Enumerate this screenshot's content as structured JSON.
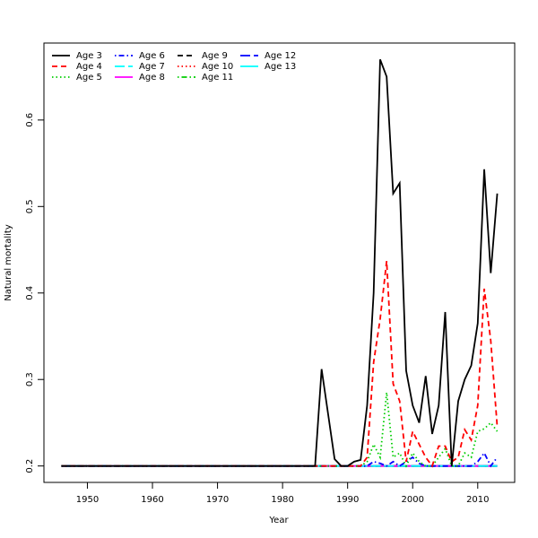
{
  "chart_data": {
    "type": "line",
    "title": null,
    "xlabel": "Year",
    "ylabel": "Natural mortality",
    "x": [
      1946,
      1947,
      1948,
      1949,
      1950,
      1951,
      1952,
      1953,
      1954,
      1955,
      1956,
      1957,
      1958,
      1959,
      1960,
      1961,
      1962,
      1963,
      1964,
      1965,
      1966,
      1967,
      1968,
      1969,
      1970,
      1971,
      1972,
      1973,
      1974,
      1975,
      1976,
      1977,
      1978,
      1979,
      1980,
      1981,
      1982,
      1983,
      1984,
      1985,
      1986,
      1987,
      1988,
      1989,
      1990,
      1991,
      1992,
      1993,
      1994,
      1995,
      1996,
      1997,
      1998,
      1999,
      2000,
      2001,
      2002,
      2003,
      2004,
      2005,
      2006,
      2007,
      2008,
      2009,
      2010,
      2011,
      2012,
      2013
    ],
    "xlim": [
      1943.32,
      2015.68
    ],
    "xticks": [
      1950,
      1960,
      1970,
      1980,
      1990,
      2000,
      2010
    ],
    "ylim": [
      0.181,
      0.689
    ],
    "yticks": [
      0.2,
      0.3,
      0.4,
      0.5,
      0.6
    ],
    "legend": "top-left",
    "series": [
      {
        "name": "Age 3",
        "color": "#000000",
        "dash": "solid",
        "values": [
          0.2,
          0.2,
          0.2,
          0.2,
          0.2,
          0.2,
          0.2,
          0.2,
          0.2,
          0.2,
          0.2,
          0.2,
          0.2,
          0.2,
          0.2,
          0.2,
          0.2,
          0.2,
          0.2,
          0.2,
          0.2,
          0.2,
          0.2,
          0.2,
          0.2,
          0.2,
          0.2,
          0.2,
          0.2,
          0.2,
          0.2,
          0.2,
          0.2,
          0.2,
          0.2,
          0.2,
          0.2,
          0.2,
          0.2,
          0.2,
          0.312,
          0.26,
          0.208,
          0.2,
          0.2,
          0.205,
          0.207,
          0.27,
          0.4,
          0.67,
          0.65,
          0.515,
          0.527,
          0.31,
          0.27,
          0.25,
          0.304,
          0.237,
          0.27,
          0.378,
          0.2,
          0.275,
          0.3,
          0.316,
          0.365,
          0.543,
          0.423,
          0.515
        ]
      },
      {
        "name": "Age 4",
        "color": "#ff0000",
        "dash": "dashed",
        "values": [
          0.2,
          0.2,
          0.2,
          0.2,
          0.2,
          0.2,
          0.2,
          0.2,
          0.2,
          0.2,
          0.2,
          0.2,
          0.2,
          0.2,
          0.2,
          0.2,
          0.2,
          0.2,
          0.2,
          0.2,
          0.2,
          0.2,
          0.2,
          0.2,
          0.2,
          0.2,
          0.2,
          0.2,
          0.2,
          0.2,
          0.2,
          0.2,
          0.2,
          0.2,
          0.2,
          0.2,
          0.2,
          0.2,
          0.2,
          0.2,
          0.2,
          0.2,
          0.2,
          0.2,
          0.2,
          0.2,
          0.2,
          0.21,
          0.32,
          0.37,
          0.437,
          0.295,
          0.275,
          0.205,
          0.24,
          0.225,
          0.21,
          0.2,
          0.223,
          0.223,
          0.205,
          0.21,
          0.242,
          0.23,
          0.27,
          0.405,
          0.345,
          0.245
        ]
      },
      {
        "name": "Age 5",
        "color": "#00cd00",
        "dash": "dotted",
        "values": [
          0.2,
          0.2,
          0.2,
          0.2,
          0.2,
          0.2,
          0.2,
          0.2,
          0.2,
          0.2,
          0.2,
          0.2,
          0.2,
          0.2,
          0.2,
          0.2,
          0.2,
          0.2,
          0.2,
          0.2,
          0.2,
          0.2,
          0.2,
          0.2,
          0.2,
          0.2,
          0.2,
          0.2,
          0.2,
          0.2,
          0.2,
          0.2,
          0.2,
          0.2,
          0.2,
          0.2,
          0.2,
          0.2,
          0.2,
          0.2,
          0.2,
          0.2,
          0.2,
          0.2,
          0.2,
          0.2,
          0.2,
          0.205,
          0.225,
          0.21,
          0.285,
          0.21,
          0.215,
          0.2,
          0.215,
          0.205,
          0.2,
          0.2,
          0.21,
          0.22,
          0.2,
          0.2,
          0.215,
          0.21,
          0.24,
          0.243,
          0.25,
          0.24
        ]
      },
      {
        "name": "Age 6",
        "color": "#0000ff",
        "dash": "dotdash",
        "values": [
          0.2,
          0.2,
          0.2,
          0.2,
          0.2,
          0.2,
          0.2,
          0.2,
          0.2,
          0.2,
          0.2,
          0.2,
          0.2,
          0.2,
          0.2,
          0.2,
          0.2,
          0.2,
          0.2,
          0.2,
          0.2,
          0.2,
          0.2,
          0.2,
          0.2,
          0.2,
          0.2,
          0.2,
          0.2,
          0.2,
          0.2,
          0.2,
          0.2,
          0.2,
          0.2,
          0.2,
          0.2,
          0.2,
          0.2,
          0.2,
          0.2,
          0.2,
          0.2,
          0.2,
          0.2,
          0.2,
          0.2,
          0.2,
          0.205,
          0.203,
          0.2,
          0.205,
          0.2,
          0.205,
          0.21,
          0.203,
          0.2,
          0.2,
          0.2,
          0.2,
          0.2,
          0.2,
          0.2,
          0.2,
          0.205,
          0.215,
          0.2,
          0.21
        ]
      },
      {
        "name": "Age 7",
        "color": "#00ffff",
        "dash": "longdash",
        "values": [
          0.2,
          0.2,
          0.2,
          0.2,
          0.2,
          0.2,
          0.2,
          0.2,
          0.2,
          0.2,
          0.2,
          0.2,
          0.2,
          0.2,
          0.2,
          0.2,
          0.2,
          0.2,
          0.2,
          0.2,
          0.2,
          0.2,
          0.2,
          0.2,
          0.2,
          0.2,
          0.2,
          0.2,
          0.2,
          0.2,
          0.2,
          0.2,
          0.2,
          0.2,
          0.2,
          0.2,
          0.2,
          0.2,
          0.2,
          0.2,
          0.2,
          0.2,
          0.2,
          0.2,
          0.2,
          0.2,
          0.2,
          0.2,
          0.2,
          0.2,
          0.2,
          0.2,
          0.2,
          0.2,
          0.2,
          0.2,
          0.2,
          0.2,
          0.2,
          0.2,
          0.2,
          0.2,
          0.2,
          0.2,
          0.2,
          0.2,
          0.2,
          0.2
        ]
      },
      {
        "name": "Age 8",
        "color": "#ff00ff",
        "dash": "solid",
        "values": [
          0.2,
          0.2,
          0.2,
          0.2,
          0.2,
          0.2,
          0.2,
          0.2,
          0.2,
          0.2,
          0.2,
          0.2,
          0.2,
          0.2,
          0.2,
          0.2,
          0.2,
          0.2,
          0.2,
          0.2,
          0.2,
          0.2,
          0.2,
          0.2,
          0.2,
          0.2,
          0.2,
          0.2,
          0.2,
          0.2,
          0.2,
          0.2,
          0.2,
          0.2,
          0.2,
          0.2,
          0.2,
          0.2,
          0.2,
          0.2,
          0.2,
          0.2,
          0.2,
          0.2,
          0.2,
          0.2,
          0.2,
          0.2,
          0.2,
          0.2,
          0.2,
          0.2,
          0.2,
          0.2,
          0.2,
          0.2,
          0.2,
          0.2,
          0.2,
          0.2,
          0.2,
          0.2,
          0.2,
          0.2,
          0.2,
          0.2,
          0.2,
          0.2
        ]
      },
      {
        "name": "Age 9",
        "color": "#000000",
        "dash": "dashed",
        "values": [
          0.2,
          0.2,
          0.2,
          0.2,
          0.2,
          0.2,
          0.2,
          0.2,
          0.2,
          0.2,
          0.2,
          0.2,
          0.2,
          0.2,
          0.2,
          0.2,
          0.2,
          0.2,
          0.2,
          0.2,
          0.2,
          0.2,
          0.2,
          0.2,
          0.2,
          0.2,
          0.2,
          0.2,
          0.2,
          0.2,
          0.2,
          0.2,
          0.2,
          0.2,
          0.2,
          0.2,
          0.2,
          0.2,
          0.2,
          0.2,
          0.2,
          0.2,
          0.2,
          0.2,
          0.2,
          0.2,
          0.2,
          0.2,
          0.2,
          0.2,
          0.2,
          0.2,
          0.2,
          0.2,
          0.2,
          0.2,
          0.2,
          0.2,
          0.2,
          0.2,
          0.2,
          0.2,
          0.2,
          0.2,
          0.2,
          0.2,
          0.2,
          0.2
        ]
      },
      {
        "name": "Age 10",
        "color": "#ff0000",
        "dash": "dotted",
        "values": [
          0.2,
          0.2,
          0.2,
          0.2,
          0.2,
          0.2,
          0.2,
          0.2,
          0.2,
          0.2,
          0.2,
          0.2,
          0.2,
          0.2,
          0.2,
          0.2,
          0.2,
          0.2,
          0.2,
          0.2,
          0.2,
          0.2,
          0.2,
          0.2,
          0.2,
          0.2,
          0.2,
          0.2,
          0.2,
          0.2,
          0.2,
          0.2,
          0.2,
          0.2,
          0.2,
          0.2,
          0.2,
          0.2,
          0.2,
          0.2,
          0.2,
          0.2,
          0.2,
          0.2,
          0.2,
          0.2,
          0.2,
          0.2,
          0.2,
          0.2,
          0.2,
          0.2,
          0.2,
          0.2,
          0.2,
          0.2,
          0.2,
          0.2,
          0.2,
          0.2,
          0.2,
          0.2,
          0.2,
          0.2,
          0.2,
          0.2,
          0.2,
          0.2
        ]
      },
      {
        "name": "Age 11",
        "color": "#00cd00",
        "dash": "dotdash",
        "values": [
          0.2,
          0.2,
          0.2,
          0.2,
          0.2,
          0.2,
          0.2,
          0.2,
          0.2,
          0.2,
          0.2,
          0.2,
          0.2,
          0.2,
          0.2,
          0.2,
          0.2,
          0.2,
          0.2,
          0.2,
          0.2,
          0.2,
          0.2,
          0.2,
          0.2,
          0.2,
          0.2,
          0.2,
          0.2,
          0.2,
          0.2,
          0.2,
          0.2,
          0.2,
          0.2,
          0.2,
          0.2,
          0.2,
          0.2,
          0.2,
          0.2,
          0.2,
          0.2,
          0.2,
          0.2,
          0.2,
          0.2,
          0.2,
          0.2,
          0.2,
          0.2,
          0.2,
          0.2,
          0.2,
          0.2,
          0.2,
          0.2,
          0.2,
          0.2,
          0.2,
          0.2,
          0.2,
          0.2,
          0.2,
          0.2,
          0.2,
          0.2,
          0.2
        ]
      },
      {
        "name": "Age 12",
        "color": "#0000ff",
        "dash": "longdash",
        "values": [
          0.2,
          0.2,
          0.2,
          0.2,
          0.2,
          0.2,
          0.2,
          0.2,
          0.2,
          0.2,
          0.2,
          0.2,
          0.2,
          0.2,
          0.2,
          0.2,
          0.2,
          0.2,
          0.2,
          0.2,
          0.2,
          0.2,
          0.2,
          0.2,
          0.2,
          0.2,
          0.2,
          0.2,
          0.2,
          0.2,
          0.2,
          0.2,
          0.2,
          0.2,
          0.2,
          0.2,
          0.2,
          0.2,
          0.2,
          0.2,
          0.2,
          0.2,
          0.2,
          0.2,
          0.2,
          0.2,
          0.2,
          0.2,
          0.2,
          0.2,
          0.2,
          0.2,
          0.2,
          0.2,
          0.2,
          0.2,
          0.2,
          0.2,
          0.2,
          0.2,
          0.2,
          0.2,
          0.2,
          0.2,
          0.2,
          0.2,
          0.2,
          0.2
        ]
      },
      {
        "name": "Age 13",
        "color": "#00ffff",
        "dash": "solid",
        "values": [
          0.2,
          0.2,
          0.2,
          0.2,
          0.2,
          0.2,
          0.2,
          0.2,
          0.2,
          0.2,
          0.2,
          0.2,
          0.2,
          0.2,
          0.2,
          0.2,
          0.2,
          0.2,
          0.2,
          0.2,
          0.2,
          0.2,
          0.2,
          0.2,
          0.2,
          0.2,
          0.2,
          0.2,
          0.2,
          0.2,
          0.2,
          0.2,
          0.2,
          0.2,
          0.2,
          0.2,
          0.2,
          0.2,
          0.2,
          0.2,
          0.2,
          0.2,
          0.2,
          0.2,
          0.2,
          0.2,
          0.2,
          0.2,
          0.2,
          0.2,
          0.2,
          0.2,
          0.2,
          0.2,
          0.2,
          0.2,
          0.2,
          0.2,
          0.2,
          0.2,
          0.2,
          0.2,
          0.2,
          0.2,
          0.2,
          0.2,
          0.2,
          0.2
        ]
      }
    ]
  }
}
